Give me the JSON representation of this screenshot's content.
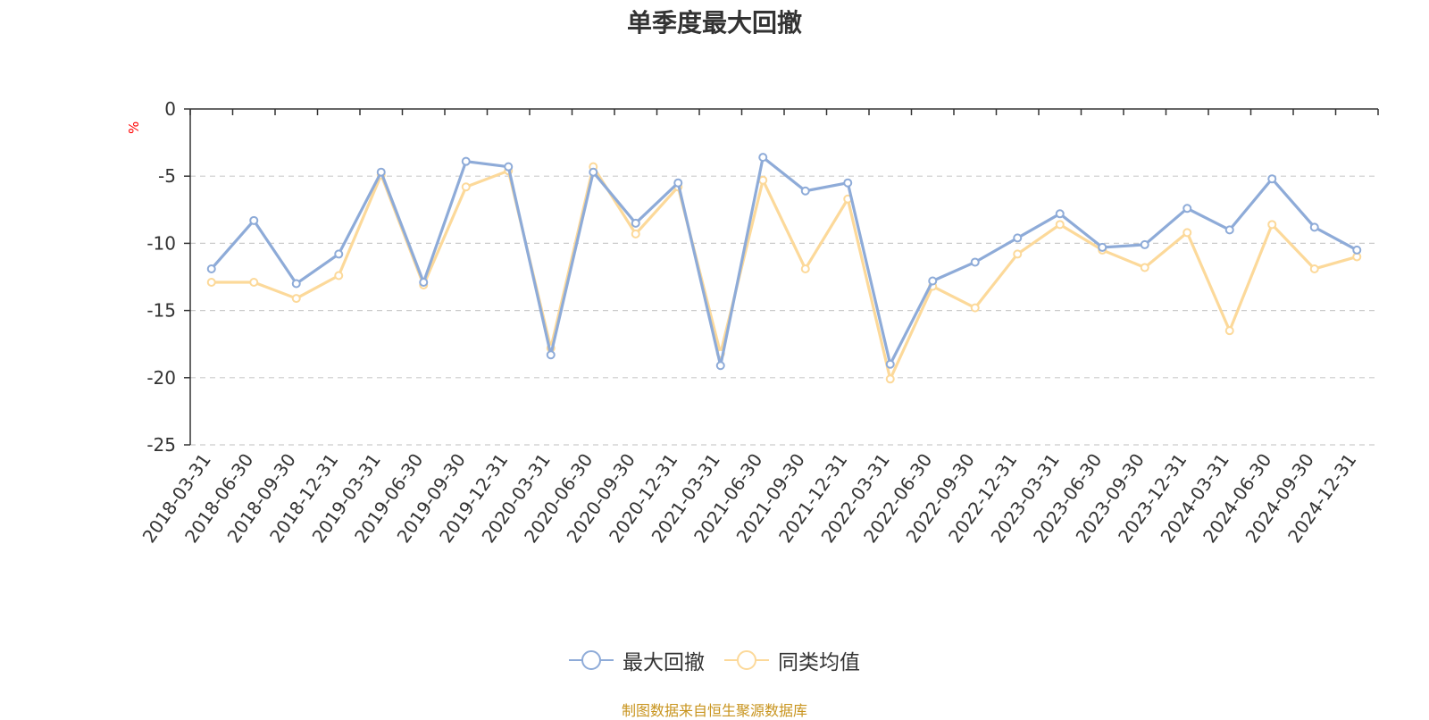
{
  "chart_data": {
    "type": "line",
    "title": "单季度最大回撤",
    "ylabel": "%",
    "ylim": [
      -25,
      0
    ],
    "yticks": [
      0,
      -5,
      -10,
      -15,
      -20,
      -25
    ],
    "grid": true,
    "legend_position": "bottom-center",
    "categories": [
      "2018-03-31",
      "2018-06-30",
      "2018-09-30",
      "2018-12-31",
      "2019-03-31",
      "2019-06-30",
      "2019-09-30",
      "2019-12-31",
      "2020-03-31",
      "2020-06-30",
      "2020-09-30",
      "2020-12-31",
      "2021-03-31",
      "2021-06-30",
      "2021-09-30",
      "2021-12-31",
      "2022-03-31",
      "2022-06-30",
      "2022-09-30",
      "2022-12-31",
      "2023-03-31",
      "2023-06-30",
      "2023-09-30",
      "2023-12-31",
      "2024-03-31",
      "2024-06-30",
      "2024-09-30",
      "2024-12-31"
    ],
    "series": [
      {
        "name": "最大回撤",
        "color": "#8eabd8",
        "values": [
          -11.9,
          -8.3,
          -13.0,
          -10.8,
          -4.7,
          -12.9,
          -3.9,
          -4.3,
          -18.3,
          -4.7,
          -8.5,
          -5.5,
          -19.1,
          -3.6,
          -6.1,
          -5.5,
          -19.0,
          -12.8,
          -11.4,
          -9.6,
          -7.8,
          -10.3,
          -10.1,
          -7.4,
          -9.0,
          -5.2,
          -8.8,
          -10.5
        ]
      },
      {
        "name": "同类均值",
        "color": "#fcd99a",
        "values": [
          -12.9,
          -12.9,
          -14.1,
          -12.4,
          -4.9,
          -13.1,
          -5.8,
          -4.6,
          -17.8,
          -4.3,
          -9.3,
          -5.8,
          -18.2,
          -5.3,
          -11.9,
          -6.7,
          -20.1,
          -13.2,
          -14.8,
          -10.8,
          -8.6,
          -10.5,
          -11.8,
          -9.2,
          -16.5,
          -8.6,
          -11.9,
          -11.0
        ]
      }
    ]
  },
  "source": "制图数据来自恒生聚源数据库"
}
